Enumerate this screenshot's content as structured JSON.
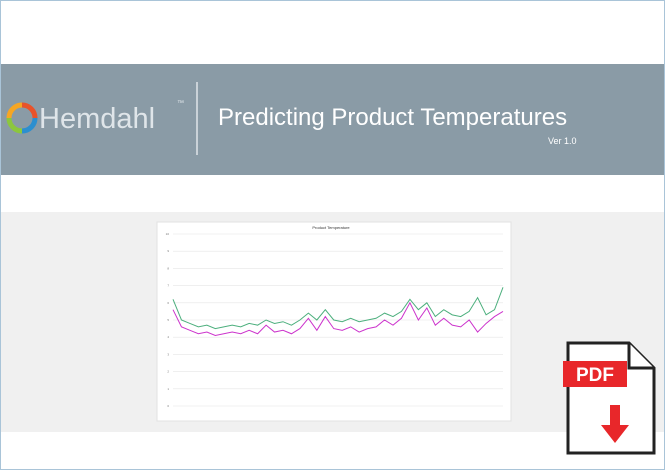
{
  "header": {
    "brand": "Hemdahl",
    "trademark": "™",
    "title": "Predicting Product Temperatures",
    "version": "Ver 1.0"
  },
  "chart_data": {
    "type": "line",
    "title": "Product Temperature",
    "ylim": [
      0,
      10
    ],
    "yticks": [
      0,
      1,
      2,
      3,
      4,
      5,
      6,
      7,
      8,
      9,
      10
    ],
    "grid": true,
    "series": [
      {
        "color": "#4caf7d",
        "values": [
          6.2,
          5.0,
          4.8,
          4.6,
          4.7,
          4.5,
          4.6,
          4.7,
          4.6,
          4.8,
          4.7,
          5.0,
          4.8,
          4.9,
          4.7,
          5.0,
          5.4,
          5.0,
          5.6,
          5.0,
          4.9,
          5.1,
          4.9,
          5.0,
          5.1,
          5.4,
          5.2,
          5.5,
          6.2,
          5.6,
          6.0,
          5.2,
          5.6,
          5.3,
          5.2,
          5.5,
          6.3,
          5.3,
          5.6,
          6.9
        ]
      },
      {
        "color": "#cc33cc",
        "values": [
          5.6,
          4.6,
          4.4,
          4.2,
          4.3,
          4.1,
          4.2,
          4.3,
          4.2,
          4.4,
          4.2,
          4.7,
          4.3,
          4.4,
          4.2,
          4.5,
          5.1,
          4.4,
          5.2,
          4.5,
          4.4,
          4.6,
          4.3,
          4.5,
          4.6,
          5.0,
          4.7,
          5.1,
          6.0,
          5.0,
          5.7,
          4.7,
          5.1,
          4.7,
          4.6,
          5.0,
          4.3,
          4.8,
          5.2,
          5.5
        ]
      }
    ]
  },
  "badge": {
    "label": "PDF"
  }
}
